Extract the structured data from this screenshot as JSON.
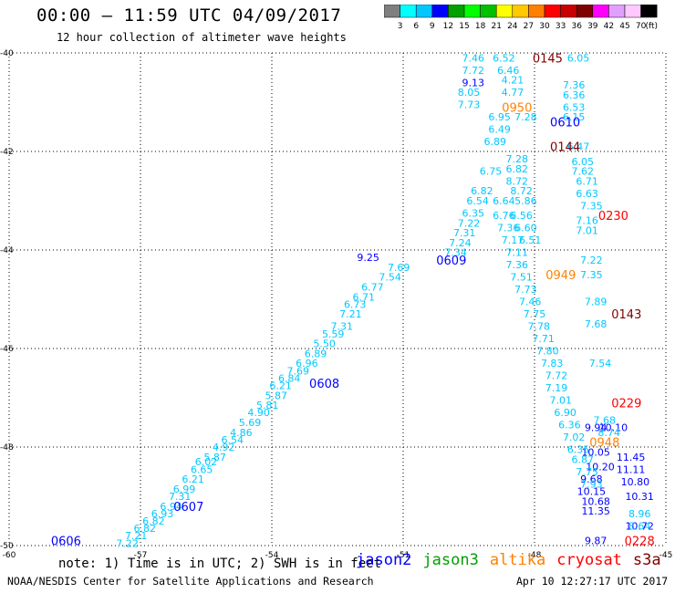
{
  "header": {
    "title": "00:00 – 11:59 UTC 04/09/2017",
    "subtitle": "12 hour collection of altimeter wave heights"
  },
  "colorbar": {
    "unit": "(ft)",
    "labels": [
      "3",
      "6",
      "9",
      "12",
      "15",
      "18",
      "21",
      "24",
      "27",
      "30",
      "33",
      "36",
      "39",
      "42",
      "45",
      "70"
    ],
    "colors": [
      "#7f7f7f",
      "#00ffff",
      "#00c8ff",
      "#0000ff",
      "#00a000",
      "#00ff00",
      "#00c000",
      "#ffff00",
      "#ffc800",
      "#ff8000",
      "#ff0000",
      "#c80000",
      "#800000",
      "#ff00ff",
      "#e0a0ff",
      "#ffc8ff",
      "#000000"
    ]
  },
  "note": "note:  1) Time is in UTC;  2) SWH is in feet",
  "legend": [
    {
      "name": "jason2",
      "color": "#0000ff"
    },
    {
      "name": "jason3",
      "color": "#00a000"
    },
    {
      "name": "altika",
      "color": "#ff8000"
    },
    {
      "name": "cryosat",
      "color": "#ff0000"
    },
    {
      "name": "s3a",
      "color": "#800000"
    }
  ],
  "footer": {
    "credit": "NOAA/NESDIS Center for Satellite Applications and Research",
    "timestamp": "Apr 10 12:27:17 UTC 2017"
  },
  "chart_data": {
    "type": "scatter",
    "xlim": [
      -60,
      -45
    ],
    "ylim": [
      -50,
      -40
    ],
    "x_ticks": [
      "-60",
      "-57",
      "-54",
      "-51",
      "-48",
      "-45"
    ],
    "y_ticks": [
      "-40",
      "-42",
      "-44",
      "-46",
      "-48",
      "-50"
    ],
    "grid": true,
    "time_labels": [
      {
        "text": "0145",
        "x": -47.7,
        "y": -40.1,
        "color": "#800000"
      },
      {
        "text": "0950",
        "x": -48.4,
        "y": -41.1,
        "color": "#ff8000"
      },
      {
        "text": "0610",
        "x": -47.3,
        "y": -41.4,
        "color": "#0000ff"
      },
      {
        "text": "0144",
        "x": -47.3,
        "y": -41.9,
        "color": "#800000"
      },
      {
        "text": "0230",
        "x": -46.2,
        "y": -43.3,
        "color": "#ff0000"
      },
      {
        "text": "0609",
        "x": -49.9,
        "y": -44.2,
        "color": "#0000ff"
      },
      {
        "text": "0949",
        "x": -47.4,
        "y": -44.5,
        "color": "#ff8000"
      },
      {
        "text": "0143",
        "x": -45.9,
        "y": -45.3,
        "color": "#800000"
      },
      {
        "text": "0608",
        "x": -52.8,
        "y": -46.7,
        "color": "#0000ff"
      },
      {
        "text": "0229",
        "x": -45.9,
        "y": -47.1,
        "color": "#ff0000"
      },
      {
        "text": "0948",
        "x": -46.4,
        "y": -47.9,
        "color": "#ff8000"
      },
      {
        "text": "0607",
        "x": -55.9,
        "y": -49.2,
        "color": "#0000ff"
      },
      {
        "text": "0606",
        "x": -58.7,
        "y": -49.9,
        "color": "#0000ff"
      },
      {
        "text": "0228",
        "x": -45.6,
        "y": -49.9,
        "color": "#ff0000"
      }
    ],
    "series": [
      {
        "name": "jason2",
        "color": "#0000ff",
        "points": [
          {
            "x": -49.4,
            "y": -40.6,
            "v": "9.13"
          },
          {
            "x": -51.8,
            "y": -44.15,
            "v": "9.25"
          },
          {
            "x": -46.6,
            "y": -47.6,
            "v": "9.94"
          },
          {
            "x": -46.2,
            "y": -47.6,
            "v": "10.10"
          },
          {
            "x": -46.6,
            "y": -48.1,
            "v": "10.05"
          },
          {
            "x": -45.8,
            "y": -48.2,
            "v": "11.45"
          },
          {
            "x": -46.5,
            "y": -48.4,
            "v": "10.20"
          },
          {
            "x": -45.8,
            "y": -48.45,
            "v": "11.11"
          },
          {
            "x": -46.7,
            "y": -48.65,
            "v": "9.68"
          },
          {
            "x": -45.7,
            "y": -48.7,
            "v": "10.80"
          },
          {
            "x": -46.7,
            "y": -48.9,
            "v": "10.15"
          },
          {
            "x": -45.6,
            "y": -49.0,
            "v": "10.31"
          },
          {
            "x": -46.6,
            "y": -49.1,
            "v": "10.68"
          },
          {
            "x": -46.6,
            "y": -49.3,
            "v": "11.35"
          },
          {
            "x": -45.6,
            "y": -49.6,
            "v": "10.72"
          },
          {
            "x": -46.6,
            "y": -49.9,
            "v": "9.87"
          }
        ]
      },
      {
        "name": "jason3",
        "color": "#00a000",
        "points": []
      },
      {
        "name": "altika",
        "color": "#ff8000",
        "points": []
      },
      {
        "name": "cryosat",
        "color": "#ff0000",
        "points": []
      },
      {
        "name": "s3a",
        "color": "#800000",
        "points": []
      },
      {
        "name": "cyan",
        "color": "#00c8ff",
        "points": [
          {
            "x": -49.4,
            "y": -40.1,
            "v": "7.46"
          },
          {
            "x": -48.7,
            "y": -40.1,
            "v": "6.52"
          },
          {
            "x": -49.4,
            "y": -40.35,
            "v": "7.72"
          },
          {
            "x": -48.6,
            "y": -40.35,
            "v": "6.46"
          },
          {
            "x": -49.5,
            "y": -40.8,
            "v": "8.05"
          },
          {
            "x": -49.5,
            "y": -41.05,
            "v": "7.73"
          },
          {
            "x": -48.8,
            "y": -41.3,
            "v": "6.95"
          },
          {
            "x": -48.8,
            "y": -41.55,
            "v": "6.49"
          },
          {
            "x": -48.9,
            "y": -41.8,
            "v": "6.89"
          },
          {
            "x": -49.0,
            "y": -42.4,
            "v": "6.75"
          },
          {
            "x": -49.2,
            "y": -42.8,
            "v": "6.82"
          },
          {
            "x": -49.3,
            "y": -43.0,
            "v": "6.54"
          },
          {
            "x": -49.4,
            "y": -43.25,
            "v": "6.35"
          },
          {
            "x": -49.5,
            "y": -43.45,
            "v": "7.22"
          },
          {
            "x": -49.6,
            "y": -43.65,
            "v": "7.31"
          },
          {
            "x": -49.7,
            "y": -43.85,
            "v": "7.24"
          },
          {
            "x": -49.8,
            "y": -44.05,
            "v": "7.34"
          },
          {
            "x": -51.1,
            "y": -44.35,
            "v": "7.69"
          },
          {
            "x": -51.3,
            "y": -44.55,
            "v": "7.54"
          },
          {
            "x": -51.7,
            "y": -44.75,
            "v": "6.77"
          },
          {
            "x": -51.9,
            "y": -44.95,
            "v": "6.71"
          },
          {
            "x": -52.1,
            "y": -45.1,
            "v": "6.73"
          },
          {
            "x": -52.2,
            "y": -45.3,
            "v": "7.21"
          },
          {
            "x": -52.4,
            "y": -45.55,
            "v": "7.31"
          },
          {
            "x": -52.6,
            "y": -45.7,
            "v": "5.59"
          },
          {
            "x": -52.8,
            "y": -45.9,
            "v": "5.50"
          },
          {
            "x": -53.0,
            "y": -46.1,
            "v": "6.89"
          },
          {
            "x": -53.2,
            "y": -46.3,
            "v": "6.96"
          },
          {
            "x": -53.4,
            "y": -46.45,
            "v": "7.69"
          },
          {
            "x": -53.6,
            "y": -46.6,
            "v": "6.84"
          },
          {
            "x": -53.8,
            "y": -46.75,
            "v": "6.21"
          },
          {
            "x": -53.9,
            "y": -46.95,
            "v": "5.87"
          },
          {
            "x": -54.1,
            "y": -47.15,
            "v": "5.81"
          },
          {
            "x": -54.3,
            "y": -47.3,
            "v": "4.90"
          },
          {
            "x": -54.5,
            "y": -47.5,
            "v": "5.69"
          },
          {
            "x": -54.7,
            "y": -47.7,
            "v": "4.86"
          },
          {
            "x": -54.9,
            "y": -47.85,
            "v": "6.54"
          },
          {
            "x": -55.1,
            "y": -48.0,
            "v": "4.92"
          },
          {
            "x": -55.3,
            "y": -48.2,
            "v": "5.87"
          },
          {
            "x": -55.5,
            "y": -48.3,
            "v": "6.02"
          },
          {
            "x": -55.6,
            "y": -48.45,
            "v": "6.65"
          },
          {
            "x": -55.8,
            "y": -48.65,
            "v": "6.21"
          },
          {
            "x": -56.0,
            "y": -48.85,
            "v": "6.99"
          },
          {
            "x": -56.1,
            "y": -49.0,
            "v": "7.31"
          },
          {
            "x": -56.3,
            "y": -49.2,
            "v": "6.94"
          },
          {
            "x": -56.5,
            "y": -49.35,
            "v": "6.93"
          },
          {
            "x": -56.7,
            "y": -49.5,
            "v": "6.82"
          },
          {
            "x": -56.9,
            "y": -49.65,
            "v": "6.82"
          },
          {
            "x": -57.1,
            "y": -49.8,
            "v": "7.21"
          },
          {
            "x": -57.3,
            "y": -49.95,
            "v": "7.22"
          },
          {
            "x": -48.4,
            "y": -42.15,
            "v": "7.28"
          },
          {
            "x": -48.4,
            "y": -42.35,
            "v": "6.82"
          },
          {
            "x": -48.4,
            "y": -42.6,
            "v": "8.72"
          },
          {
            "x": -48.3,
            "y": -42.8,
            "v": "8.72"
          },
          {
            "x": -48.7,
            "y": -43.0,
            "v": "6.64"
          },
          {
            "x": -48.2,
            "y": -43.0,
            "v": "5.86"
          },
          {
            "x": -48.7,
            "y": -43.3,
            "v": "6.76"
          },
          {
            "x": -48.3,
            "y": -43.3,
            "v": "6.56"
          },
          {
            "x": -48.6,
            "y": -43.55,
            "v": "7.36"
          },
          {
            "x": -48.2,
            "y": -43.55,
            "v": "6.60"
          },
          {
            "x": -48.5,
            "y": -43.8,
            "v": "7.17"
          },
          {
            "x": -48.1,
            "y": -43.8,
            "v": "6.51"
          },
          {
            "x": -48.4,
            "y": -44.05,
            "v": "7.11"
          },
          {
            "x": -48.4,
            "y": -44.3,
            "v": "7.36"
          },
          {
            "x": -48.3,
            "y": -44.55,
            "v": "7.51"
          },
          {
            "x": -48.2,
            "y": -44.8,
            "v": "7.73"
          },
          {
            "x": -48.1,
            "y": -45.05,
            "v": "7.46"
          },
          {
            "x": -48.0,
            "y": -45.3,
            "v": "7.75"
          },
          {
            "x": -47.9,
            "y": -45.55,
            "v": "7.78"
          },
          {
            "x": -47.8,
            "y": -45.8,
            "v": "7.71"
          },
          {
            "x": -47.7,
            "y": -46.05,
            "v": "7.80"
          },
          {
            "x": -47.6,
            "y": -46.3,
            "v": "7.83"
          },
          {
            "x": -47.5,
            "y": -46.55,
            "v": "7.72"
          },
          {
            "x": -47.5,
            "y": -46.8,
            "v": "7.19"
          },
          {
            "x": -47.4,
            "y": -47.05,
            "v": "7.01"
          },
          {
            "x": -47.3,
            "y": -47.3,
            "v": "6.90"
          },
          {
            "x": -47.2,
            "y": -47.55,
            "v": "6.36"
          },
          {
            "x": -47.1,
            "y": -47.8,
            "v": "7.02"
          },
          {
            "x": -47.0,
            "y": -48.05,
            "v": "6.35"
          },
          {
            "x": -46.9,
            "y": -48.25,
            "v": "6.87"
          },
          {
            "x": -46.8,
            "y": -48.5,
            "v": "7.75"
          },
          {
            "x": -46.7,
            "y": -48.75,
            "v": "7.93"
          },
          {
            "x": -45.6,
            "y": -49.35,
            "v": "8.96"
          },
          {
            "x": -45.6,
            "y": -49.6,
            "v": "8.64"
          },
          {
            "x": -47.0,
            "y": -41.9,
            "v": "6.47"
          },
          {
            "x": -46.9,
            "y": -42.2,
            "v": "6.05"
          },
          {
            "x": -46.9,
            "y": -42.4,
            "v": "7.62"
          },
          {
            "x": -46.8,
            "y": -42.6,
            "v": "6.71"
          },
          {
            "x": -46.8,
            "y": -42.85,
            "v": "6.63"
          },
          {
            "x": -46.7,
            "y": -43.1,
            "v": "7.35"
          },
          {
            "x": -46.8,
            "y": -43.4,
            "v": "7.16"
          },
          {
            "x": -46.8,
            "y": -43.6,
            "v": "7.01"
          },
          {
            "x": -46.7,
            "y": -44.2,
            "v": "7.22"
          },
          {
            "x": -46.7,
            "y": -44.5,
            "v": "7.35"
          },
          {
            "x": -46.6,
            "y": -45.05,
            "v": "7.89"
          },
          {
            "x": -46.6,
            "y": -45.5,
            "v": "7.68"
          },
          {
            "x": -46.5,
            "y": -46.3,
            "v": "7.54"
          },
          {
            "x": -46.4,
            "y": -47.45,
            "v": "7.68"
          },
          {
            "x": -46.3,
            "y": -47.7,
            "v": "8.74"
          },
          {
            "x": -47.0,
            "y": -40.1,
            "v": "6.05"
          },
          {
            "x": -47.1,
            "y": -40.65,
            "v": "7.36"
          },
          {
            "x": -47.1,
            "y": -40.85,
            "v": "6.36"
          },
          {
            "x": -47.1,
            "y": -41.1,
            "v": "6.53"
          },
          {
            "x": -47.1,
            "y": -41.3,
            "v": "6.15"
          },
          {
            "x": -48.5,
            "y": -40.55,
            "v": "4.21"
          },
          {
            "x": -48.5,
            "y": -40.8,
            "v": "4.77"
          },
          {
            "x": -48.2,
            "y": -41.3,
            "v": "7.28"
          }
        ]
      }
    ]
  }
}
